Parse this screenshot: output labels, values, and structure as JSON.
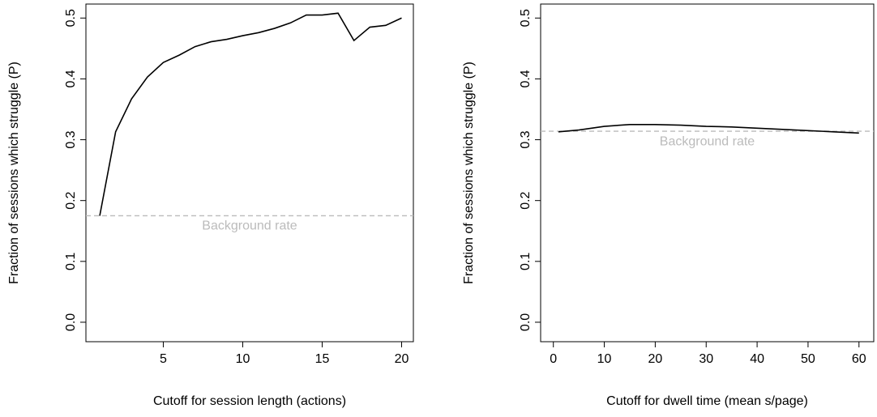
{
  "chart_data": [
    {
      "type": "line",
      "xlabel": "Cutoff for session length (actions)",
      "ylabel": "Fraction of sessions which struggle (P)",
      "x": [
        1,
        2,
        3,
        4,
        5,
        6,
        7,
        8,
        9,
        10,
        11,
        12,
        13,
        14,
        15,
        16,
        17,
        18,
        19,
        20
      ],
      "values": [
        0.175,
        0.313,
        0.367,
        0.403,
        0.427,
        0.439,
        0.453,
        0.461,
        0.465,
        0.471,
        0.476,
        0.483,
        0.492,
        0.505,
        0.505,
        0.508,
        0.463,
        0.485,
        0.488,
        0.5
      ],
      "color": "#000000",
      "reference_line": {
        "value": 0.175,
        "label": "Background rate",
        "color": "#bbbbbb"
      },
      "xlim": [
        0.13,
        20.74
      ],
      "ylim": [
        -0.032,
        0.523
      ],
      "xticks": [
        5,
        10,
        15,
        20
      ],
      "yticks": [
        {
          "value": 0,
          "label": "0.0"
        },
        0.1,
        0.2,
        0.3,
        0.4,
        0.5
      ]
    },
    {
      "type": "line",
      "xlabel": "Cutoff for dwell time (mean s/page)",
      "ylabel": "Fraction of sessions which struggle (P)",
      "x": [
        1,
        5,
        10,
        15,
        20,
        25,
        30,
        35,
        40,
        45,
        50,
        55,
        60
      ],
      "values": [
        0.313,
        0.316,
        0.322,
        0.325,
        0.325,
        0.324,
        0.322,
        0.321,
        0.319,
        0.317,
        0.315,
        0.313,
        0.311
      ],
      "color": "#000000",
      "reference_line": {
        "value": 0.314,
        "label": "Background rate",
        "color": "#bbbbbb"
      },
      "xlim": [
        -2.5,
        62.9
      ],
      "ylim": [
        -0.032,
        0.523
      ],
      "xticks": [
        0,
        10,
        20,
        30,
        40,
        50,
        60
      ],
      "yticks": [
        {
          "value": 0,
          "label": "0.0"
        },
        0.1,
        0.2,
        0.3,
        0.4,
        0.5
      ]
    }
  ]
}
